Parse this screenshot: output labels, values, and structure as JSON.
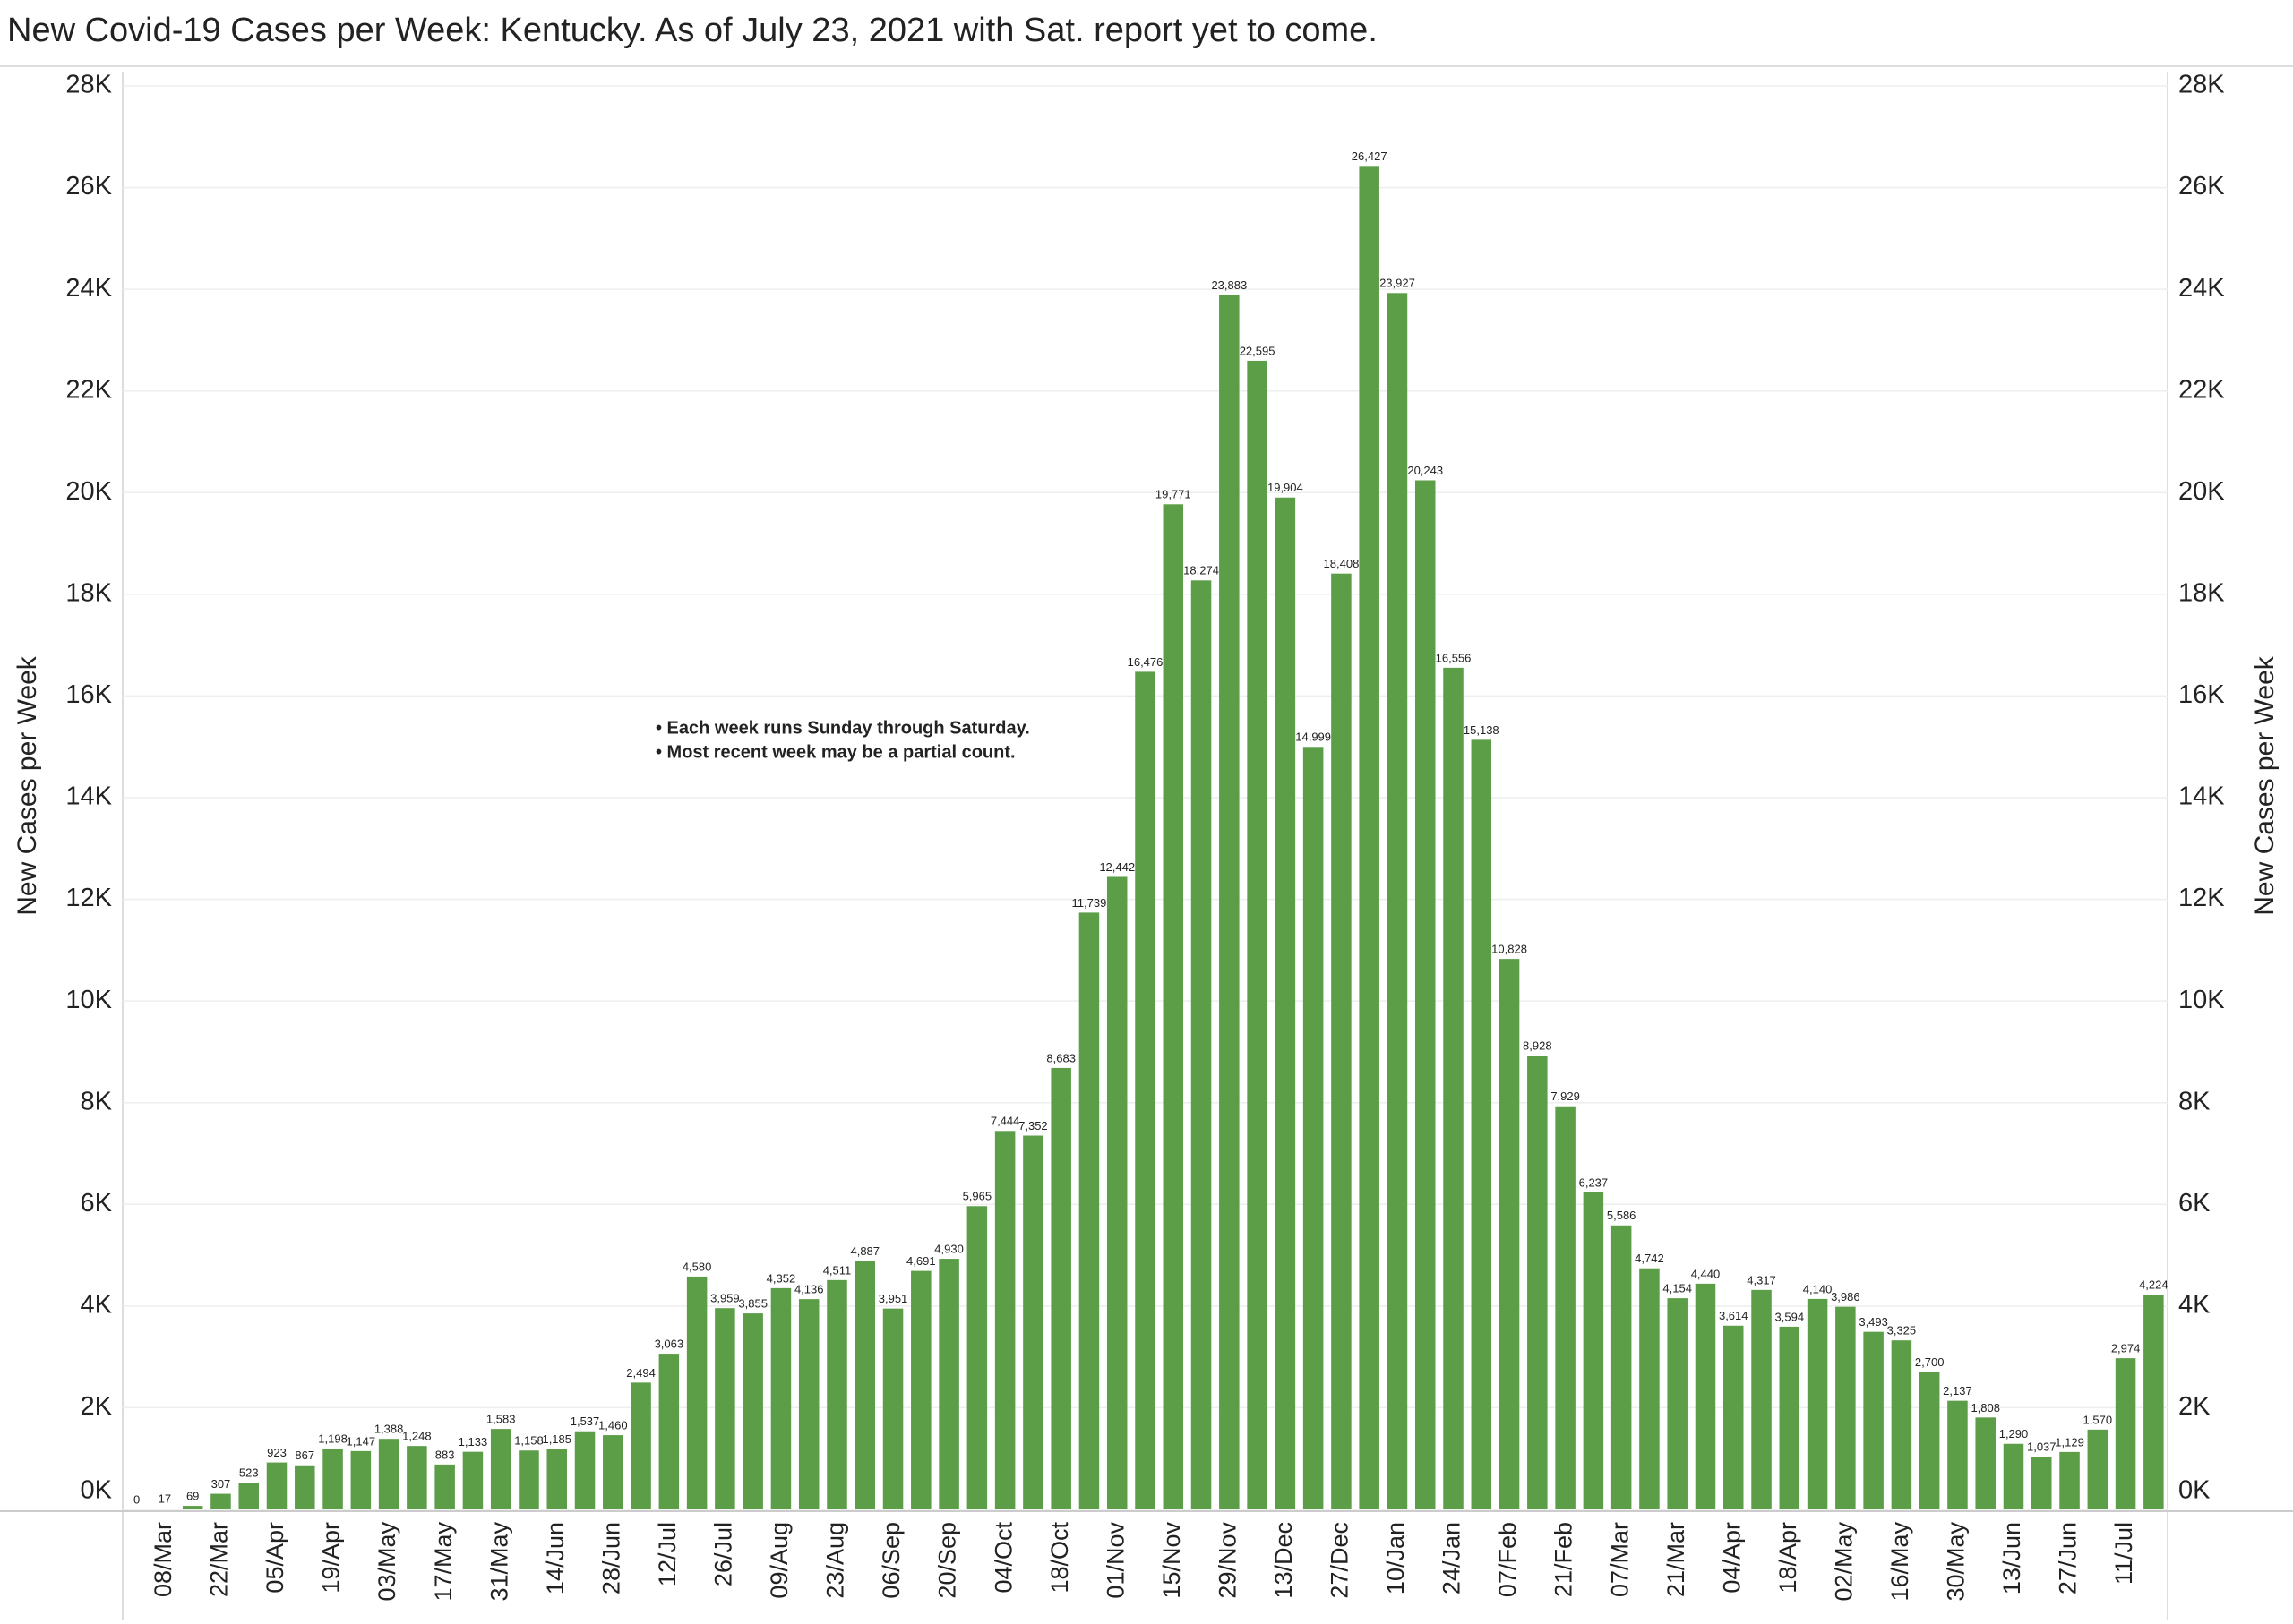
{
  "chart_data": {
    "type": "bar",
    "title": "New Covid-19 Cases per Week:  Kentucky. As of July 23, 2021 with Sat. report yet to come.",
    "y_label": "New Cases per Week",
    "annotations": [
      "• Each week runs Sunday through Saturday.",
      "• Most recent week may be a partial count."
    ],
    "categories": [
      null,
      "08/Mar",
      null,
      "22/Mar",
      null,
      "05/Apr",
      null,
      "19/Apr",
      null,
      "03/May",
      null,
      "17/May",
      null,
      "31/May",
      null,
      "14/Jun",
      null,
      "28/Jun",
      null,
      "12/Jul",
      null,
      "26/Jul",
      null,
      "09/Aug",
      null,
      "23/Aug",
      null,
      "06/Sep",
      null,
      "20/Sep",
      null,
      "04/Oct",
      null,
      "18/Oct",
      null,
      "01/Nov",
      null,
      "15/Nov",
      null,
      "29/Nov",
      null,
      "13/Dec",
      null,
      "27/Dec",
      null,
      "10/Jan",
      null,
      "24/Jan",
      null,
      "07/Feb",
      null,
      "21/Feb",
      null,
      "07/Mar",
      null,
      "21/Mar",
      null,
      "04/Apr",
      null,
      "18/Apr",
      null,
      "02/May",
      null,
      "16/May",
      null,
      "30/May",
      null,
      "13/Jun",
      null,
      "27/Jun",
      null,
      "11/Jul",
      null
    ],
    "values": [
      0,
      17,
      69,
      307,
      523,
      923,
      867,
      1198,
      1147,
      1388,
      1248,
      883,
      1133,
      1583,
      1158,
      1185,
      1537,
      1460,
      2494,
      3063,
      4580,
      3959,
      3855,
      4352,
      4136,
      4511,
      4887,
      3951,
      4691,
      4930,
      5965,
      7444,
      7352,
      8683,
      11739,
      12442,
      16476,
      19771,
      18274,
      23883,
      22595,
      19904,
      14999,
      18408,
      26427,
      23927,
      20243,
      16556,
      15138,
      10828,
      8928,
      7929,
      6237,
      5586,
      4742,
      4154,
      4440,
      3614,
      4317,
      3594,
      4140,
      3986,
      3493,
      3325,
      2700,
      2137,
      1808,
      1290,
      1037,
      1129,
      1570,
      2974,
      4224
    ],
    "value_labels": [
      "0",
      "17",
      "69",
      "307",
      "523",
      "923",
      "867",
      "1,198",
      "1,147",
      "1,388",
      "1,248",
      "883",
      "1,133",
      "1,583",
      "1,158",
      "1,185",
      "1,537",
      "1,460",
      "2,494",
      "3,063",
      "4,580",
      "3,959",
      "3,855",
      "4,352",
      "4,136",
      "4,511",
      "4,887",
      "3,951",
      "4,691",
      "4,930",
      "5,965",
      "7,444",
      "7,352",
      "8,683",
      "11,739",
      "12,442",
      "16,476",
      "19,771",
      "18,274",
      "23,883",
      "22,595",
      "19,904",
      "14,999",
      "18,408",
      "26,427",
      "23,927",
      "20,243",
      "16,556",
      "15,138",
      "10,828",
      "8,928",
      "7,929",
      "6,237",
      "5,586",
      "4,742",
      "4,154",
      "4,440",
      "3,614",
      "4,317",
      "3,594",
      "4,140",
      "3,986",
      "3,493",
      "3,325",
      "2,700",
      "2,137",
      "1,808",
      "1,290",
      "1,037",
      "1,129",
      "1,570",
      "2,974",
      "4,224"
    ],
    "color": "#5c9e48",
    "ylim": [
      0,
      28000
    ],
    "yticks": [
      {
        "value": 0,
        "label": "0K"
      },
      {
        "value": 2000,
        "label": "2K"
      },
      {
        "value": 4000,
        "label": "4K"
      },
      {
        "value": 6000,
        "label": "6K"
      },
      {
        "value": 8000,
        "label": "8K"
      },
      {
        "value": 10000,
        "label": "10K"
      },
      {
        "value": 12000,
        "label": "12K"
      },
      {
        "value": 14000,
        "label": "14K"
      },
      {
        "value": 16000,
        "label": "16K"
      },
      {
        "value": 18000,
        "label": "18K"
      },
      {
        "value": 20000,
        "label": "20K"
      },
      {
        "value": 22000,
        "label": "22K"
      },
      {
        "value": 24000,
        "label": "24K"
      },
      {
        "value": 26000,
        "label": "26K"
      },
      {
        "value": 28000,
        "label": "28K"
      }
    ],
    "grid": true
  }
}
